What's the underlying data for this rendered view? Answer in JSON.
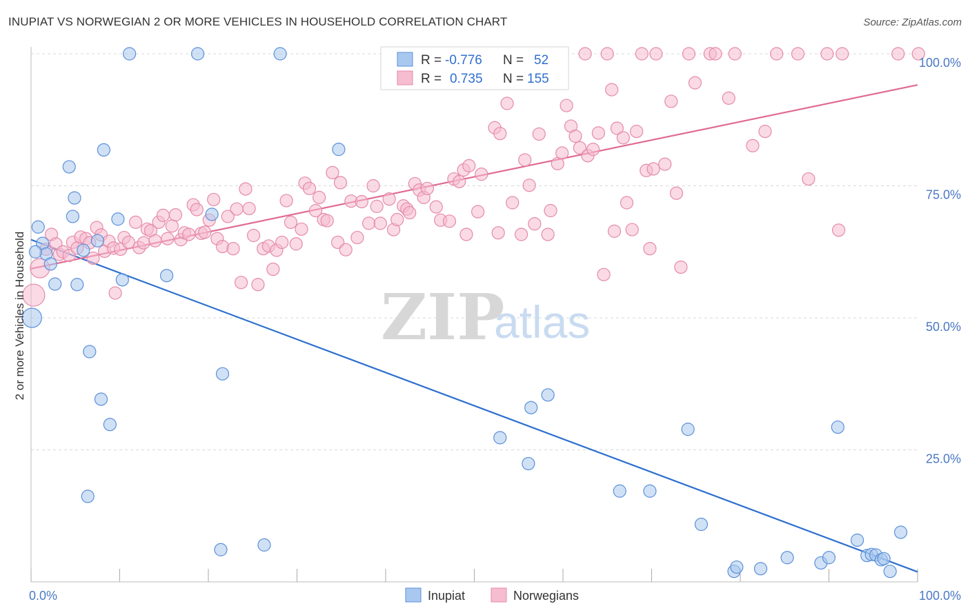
{
  "title": "INUPIAT VS NORWEGIAN 2 OR MORE VEHICLES IN HOUSEHOLD CORRELATION CHART",
  "source": "Source: ZipAtlas.com",
  "watermark": {
    "zip": "ZIP",
    "atlas": "atlas"
  },
  "colors": {
    "blue_fill": "#a9c8ef",
    "blue_stroke": "#5b8fd8",
    "blue_line": "#2b6fce",
    "pink_fill": "#f6bcd0",
    "pink_stroke": "#e48aa8",
    "pink_line": "#e06a93",
    "tick_text": "#4a78c4",
    "grid": "#d8d8d8"
  },
  "legend": {
    "rows": [
      {
        "r_label": "R =",
        "r_value": "-0.776",
        "n_label": "N =",
        "n_value": "52",
        "series": "blue"
      },
      {
        "r_label": "R =",
        "r_value": "0.735",
        "n_label": "N =",
        "n_value": "155",
        "series": "pink"
      }
    ]
  },
  "bottom_legend": [
    "Inupiat",
    "Norwegians"
  ],
  "chart_data": {
    "type": "scatter",
    "title": "INUPIAT VS NORWEGIAN 2 OR MORE VEHICLES IN HOUSEHOLD CORRELATION CHART",
    "xlabel": "",
    "ylabel": "2 or more Vehicles in Household",
    "xlim": [
      0,
      100
    ],
    "ylim": [
      0,
      100
    ],
    "x_tick_labels": [
      "0.0%",
      "100.0%"
    ],
    "y_tick_labels": [
      "100.0%",
      "75.0%",
      "50.0%",
      "25.0%"
    ],
    "y_tick_values": [
      100,
      75,
      50,
      25
    ],
    "grid": "horizontal dashed",
    "series": [
      {
        "name": "Inupiat",
        "color": "blue",
        "trend": {
          "x": [
            0,
            100
          ],
          "y": [
            64.8,
            1.9
          ]
        },
        "points": [
          [
            0.1,
            50.0,
            14
          ],
          [
            0.8,
            67.2,
            9
          ],
          [
            1.3,
            64.1,
            9
          ],
          [
            1.7,
            62.1,
            9
          ],
          [
            2.2,
            60.2,
            9
          ],
          [
            2.7,
            56.4,
            9
          ],
          [
            4.3,
            78.6,
            9
          ],
          [
            4.7,
            69.2,
            9
          ],
          [
            4.9,
            72.7,
            9
          ],
          [
            5.2,
            56.3,
            9
          ],
          [
            5.9,
            62.8,
            9
          ],
          [
            6.4,
            16.2,
            9
          ],
          [
            6.6,
            43.6,
            9
          ],
          [
            7.5,
            64.6,
            9
          ],
          [
            7.9,
            34.6,
            9
          ],
          [
            8.2,
            81.8,
            9
          ],
          [
            8.9,
            29.8,
            9
          ],
          [
            9.8,
            68.7,
            9
          ],
          [
            10.3,
            57.2,
            9
          ],
          [
            11.1,
            100,
            9
          ],
          [
            15.3,
            58.0,
            9
          ],
          [
            18.8,
            100,
            9
          ],
          [
            20.4,
            69.6,
            9
          ],
          [
            21.4,
            6.1,
            9
          ],
          [
            21.6,
            39.4,
            9
          ],
          [
            26.3,
            7.0,
            9
          ],
          [
            28.1,
            100,
            9
          ],
          [
            34.7,
            81.9,
            9
          ],
          [
            52.9,
            27.3,
            9
          ],
          [
            56.1,
            22.4,
            9
          ],
          [
            56.4,
            33.0,
            9
          ],
          [
            58.3,
            35.4,
            9
          ],
          [
            66.4,
            17.2,
            9
          ],
          [
            69.8,
            17.2,
            9
          ],
          [
            74.1,
            28.9,
            9
          ],
          [
            75.6,
            10.9,
            9
          ],
          [
            79.3,
            2.0,
            9
          ],
          [
            79.6,
            2.8,
            9
          ],
          [
            82.3,
            2.5,
            9
          ],
          [
            85.3,
            4.6,
            9
          ],
          [
            89.1,
            3.6,
            9
          ],
          [
            90.0,
            4.6,
            9
          ],
          [
            91.0,
            29.3,
            9
          ],
          [
            93.2,
            7.9,
            9
          ],
          [
            94.3,
            5.0,
            9
          ],
          [
            94.8,
            5.2,
            9
          ],
          [
            95.3,
            5.1,
            9
          ],
          [
            95.9,
            4.2,
            9
          ],
          [
            96.2,
            4.4,
            9
          ],
          [
            96.9,
            2.0,
            9
          ],
          [
            98.1,
            9.4,
            9
          ],
          [
            0.5,
            62.5,
            9
          ]
        ]
      },
      {
        "name": "Norwegians",
        "color": "pink",
        "trend": {
          "x": [
            0,
            100
          ],
          "y": [
            59.3,
            94.1
          ]
        },
        "points": [
          [
            0.3,
            54.3,
            16
          ],
          [
            1.0,
            59.4,
            14
          ],
          [
            1.7,
            63.0,
            9
          ],
          [
            2.3,
            65.8,
            9
          ],
          [
            2.8,
            64.0,
            9
          ],
          [
            3.2,
            62.0,
            9
          ],
          [
            3.6,
            62.5,
            9
          ],
          [
            4.3,
            61.8,
            9
          ],
          [
            4.7,
            64.3,
            9
          ],
          [
            5.2,
            63.2,
            9
          ],
          [
            5.6,
            65.3,
            9
          ],
          [
            6.2,
            65.0,
            9
          ],
          [
            6.6,
            64.2,
            9
          ],
          [
            7.0,
            61.3,
            9
          ],
          [
            7.4,
            67.1,
            9
          ],
          [
            7.9,
            65.7,
            9
          ],
          [
            8.3,
            62.6,
            9
          ],
          [
            8.8,
            64.5,
            9
          ],
          [
            9.3,
            63.2,
            9
          ],
          [
            9.5,
            54.7,
            9
          ],
          [
            10.1,
            63.0,
            9
          ],
          [
            10.5,
            65.2,
            9
          ],
          [
            11.0,
            64.3,
            9
          ],
          [
            11.8,
            68.1,
            9
          ],
          [
            12.2,
            63.3,
            9
          ],
          [
            12.7,
            64.2,
            9
          ],
          [
            13.1,
            66.8,
            9
          ],
          [
            13.5,
            66.5,
            9
          ],
          [
            14.0,
            64.6,
            9
          ],
          [
            14.4,
            68.1,
            9
          ],
          [
            14.9,
            69.4,
            9
          ],
          [
            15.4,
            65.0,
            9
          ],
          [
            15.9,
            67.4,
            9
          ],
          [
            16.3,
            69.5,
            9
          ],
          [
            16.9,
            64.8,
            9
          ],
          [
            17.3,
            66.1,
            9
          ],
          [
            17.8,
            65.8,
            9
          ],
          [
            18.3,
            71.4,
            9
          ],
          [
            18.7,
            70.5,
            9
          ],
          [
            19.2,
            66.0,
            9
          ],
          [
            19.6,
            66.2,
            9
          ],
          [
            20.1,
            68.5,
            9
          ],
          [
            20.6,
            72.4,
            9
          ],
          [
            21.0,
            65.0,
            9
          ],
          [
            21.6,
            63.5,
            9
          ],
          [
            22.2,
            69.2,
            9
          ],
          [
            22.8,
            63.1,
            9
          ],
          [
            23.2,
            70.6,
            9
          ],
          [
            23.7,
            56.7,
            9
          ],
          [
            24.2,
            74.4,
            9
          ],
          [
            24.6,
            70.7,
            9
          ],
          [
            25.1,
            65.6,
            9
          ],
          [
            25.6,
            56.3,
            9
          ],
          [
            26.2,
            63.1,
            9
          ],
          [
            26.8,
            63.6,
            9
          ],
          [
            27.3,
            59.2,
            9
          ],
          [
            27.7,
            62.8,
            9
          ],
          [
            28.3,
            64.3,
            9
          ],
          [
            28.8,
            72.2,
            9
          ],
          [
            29.3,
            68.1,
            9
          ],
          [
            29.9,
            64.0,
            9
          ],
          [
            30.5,
            66.8,
            9
          ],
          [
            30.9,
            75.5,
            9
          ],
          [
            31.4,
            74.5,
            9
          ],
          [
            32.1,
            70.3,
            9
          ],
          [
            32.5,
            72.8,
            9
          ],
          [
            33.0,
            68.6,
            9
          ],
          [
            33.4,
            68.4,
            9
          ],
          [
            34.0,
            77.5,
            9
          ],
          [
            34.6,
            64.3,
            9
          ],
          [
            34.9,
            75.6,
            9
          ],
          [
            35.5,
            62.9,
            9
          ],
          [
            36.1,
            72.1,
            9
          ],
          [
            36.8,
            65.2,
            9
          ],
          [
            37.3,
            72.0,
            9
          ],
          [
            38.1,
            67.9,
            9
          ],
          [
            38.6,
            75.0,
            9
          ],
          [
            39.0,
            71.1,
            9
          ],
          [
            39.4,
            67.9,
            9
          ],
          [
            40.4,
            72.5,
            9
          ],
          [
            40.9,
            66.7,
            9
          ],
          [
            41.3,
            68.6,
            9
          ],
          [
            42.0,
            71.2,
            9
          ],
          [
            42.4,
            70.6,
            9
          ],
          [
            42.7,
            69.9,
            9
          ],
          [
            43.3,
            75.4,
            9
          ],
          [
            43.8,
            74.2,
            9
          ],
          [
            44.3,
            72.8,
            9
          ],
          [
            44.7,
            74.5,
            9
          ],
          [
            45.7,
            71.0,
            9
          ],
          [
            46.2,
            68.5,
            9
          ],
          [
            47.2,
            68.3,
            9
          ],
          [
            47.7,
            76.3,
            9
          ],
          [
            48.3,
            75.8,
            9
          ],
          [
            48.8,
            78.0,
            9
          ],
          [
            49.1,
            65.8,
            9
          ],
          [
            49.4,
            78.8,
            9
          ],
          [
            50.4,
            70.1,
            9
          ],
          [
            50.8,
            77.2,
            9
          ],
          [
            52.3,
            86.0,
            9
          ],
          [
            52.7,
            66.1,
            9
          ],
          [
            52.9,
            84.9,
            9
          ],
          [
            53.7,
            90.6,
            9
          ],
          [
            54.3,
            71.8,
            9
          ],
          [
            55.3,
            65.8,
            9
          ],
          [
            55.7,
            79.9,
            9
          ],
          [
            56.2,
            75.1,
            9
          ],
          [
            56.8,
            67.8,
            9
          ],
          [
            57.3,
            84.8,
            9
          ],
          [
            58.3,
            65.8,
            9
          ],
          [
            58.6,
            70.3,
            9
          ],
          [
            59.4,
            79.2,
            9
          ],
          [
            59.9,
            81.2,
            9
          ],
          [
            60.4,
            90.2,
            9
          ],
          [
            60.9,
            86.3,
            9
          ],
          [
            61.4,
            84.4,
            9
          ],
          [
            61.9,
            82.2,
            9
          ],
          [
            62.5,
            100,
            9
          ],
          [
            62.8,
            80.7,
            9
          ],
          [
            63.4,
            81.9,
            9
          ],
          [
            64.0,
            85.0,
            9
          ],
          [
            64.6,
            58.2,
            9
          ],
          [
            65.0,
            100,
            9
          ],
          [
            65.5,
            93.2,
            9
          ],
          [
            65.8,
            66.4,
            9
          ],
          [
            66.1,
            85.9,
            9
          ],
          [
            66.8,
            84.1,
            9
          ],
          [
            67.2,
            71.8,
            9
          ],
          [
            67.8,
            66.7,
            9
          ],
          [
            68.3,
            85.3,
            9
          ],
          [
            68.9,
            100,
            9
          ],
          [
            69.4,
            77.9,
            9
          ],
          [
            69.8,
            63.1,
            9
          ],
          [
            70.2,
            78.2,
            9
          ],
          [
            70.5,
            100,
            9
          ],
          [
            71.5,
            79.1,
            9
          ],
          [
            72.2,
            91.0,
            9
          ],
          [
            72.8,
            73.6,
            9
          ],
          [
            73.3,
            59.6,
            9
          ],
          [
            74.2,
            100,
            9
          ],
          [
            74.9,
            94.5,
            9
          ],
          [
            76.6,
            100,
            9
          ],
          [
            77.2,
            100,
            9
          ],
          [
            78.7,
            91.6,
            9
          ],
          [
            79.4,
            100,
            9
          ],
          [
            81.4,
            82.6,
            9
          ],
          [
            82.8,
            85.3,
            9
          ],
          [
            84.1,
            100,
            9
          ],
          [
            86.5,
            100,
            9
          ],
          [
            87.7,
            76.3,
            9
          ],
          [
            89.8,
            100,
            9
          ],
          [
            91.1,
            66.6,
            9
          ],
          [
            91.5,
            100,
            9
          ],
          [
            100.1,
            100,
            9
          ],
          [
            97.8,
            100,
            9
          ]
        ]
      }
    ]
  }
}
